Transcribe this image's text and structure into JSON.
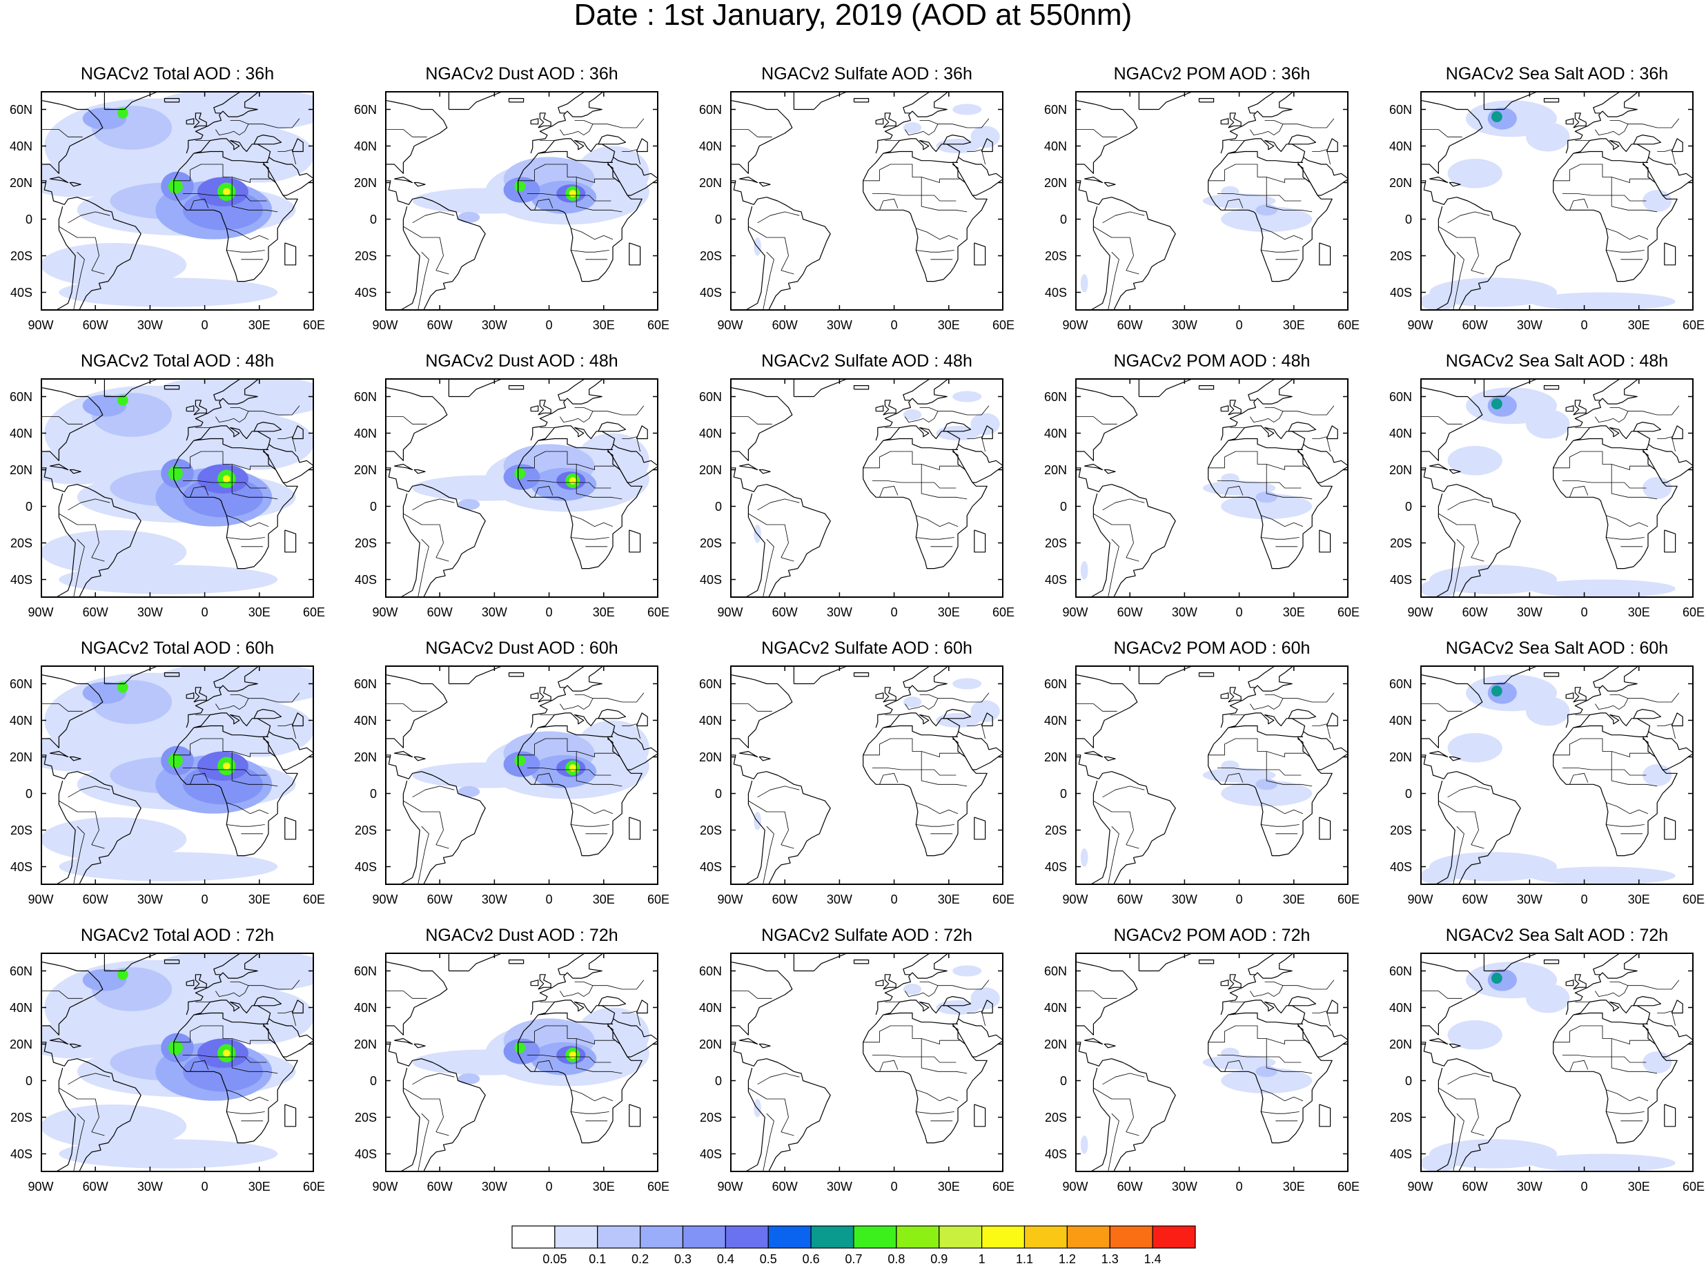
{
  "title": "Date : 1st January, 2019 (AOD at 550nm)",
  "map": {
    "lon_range": [
      -90,
      60
    ],
    "lat_range": [
      -50,
      70
    ],
    "lon_ticks": [
      "90W",
      "60W",
      "30W",
      "0",
      "30E",
      "60E"
    ],
    "lat_ticks": [
      "60N",
      "40N",
      "20N",
      "0",
      "20S",
      "40S"
    ]
  },
  "panels": [
    {
      "row": 0,
      "col": 0,
      "species": "total",
      "title": "NGACv2 Total AOD : 36h"
    },
    {
      "row": 0,
      "col": 1,
      "species": "dust",
      "title": "NGACv2 Dust AOD : 36h"
    },
    {
      "row": 0,
      "col": 2,
      "species": "sulfate",
      "title": "NGACv2 Sulfate AOD : 36h"
    },
    {
      "row": 0,
      "col": 3,
      "species": "pom",
      "title": "NGACv2 POM AOD : 36h"
    },
    {
      "row": 0,
      "col": 4,
      "species": "seasalt",
      "title": "NGACv2 Sea Salt AOD : 36h"
    },
    {
      "row": 1,
      "col": 0,
      "species": "total",
      "title": "NGACv2 Total AOD : 48h"
    },
    {
      "row": 1,
      "col": 1,
      "species": "dust",
      "title": "NGACv2 Dust AOD : 48h"
    },
    {
      "row": 1,
      "col": 2,
      "species": "sulfate",
      "title": "NGACv2 Sulfate AOD : 48h"
    },
    {
      "row": 1,
      "col": 3,
      "species": "pom",
      "title": "NGACv2 POM AOD : 48h"
    },
    {
      "row": 1,
      "col": 4,
      "species": "seasalt",
      "title": "NGACv2 Sea Salt AOD : 48h"
    },
    {
      "row": 2,
      "col": 0,
      "species": "total",
      "title": "NGACv2 Total AOD : 60h"
    },
    {
      "row": 2,
      "col": 1,
      "species": "dust",
      "title": "NGACv2 Dust AOD : 60h"
    },
    {
      "row": 2,
      "col": 2,
      "species": "sulfate",
      "title": "NGACv2 Sulfate AOD : 60h"
    },
    {
      "row": 2,
      "col": 3,
      "species": "pom",
      "title": "NGACv2 POM AOD : 60h"
    },
    {
      "row": 2,
      "col": 4,
      "species": "seasalt",
      "title": "NGACv2 Sea Salt AOD : 60h"
    },
    {
      "row": 3,
      "col": 0,
      "species": "total",
      "title": "NGACv2 Total AOD : 72h"
    },
    {
      "row": 3,
      "col": 1,
      "species": "dust",
      "title": "NGACv2 Dust AOD : 72h"
    },
    {
      "row": 3,
      "col": 2,
      "species": "sulfate",
      "title": "NGACv2 Sulfate AOD : 72h"
    },
    {
      "row": 3,
      "col": 3,
      "species": "pom",
      "title": "NGACv2 POM AOD : 72h"
    },
    {
      "row": 3,
      "col": 4,
      "species": "seasalt",
      "title": "NGACv2 Sea Salt  AOD : 72h"
    }
  ],
  "colorbar": {
    "labels": [
      "0.05",
      "0.1",
      "0.2",
      "0.3",
      "0.4",
      "0.5",
      "0.6",
      "0.7",
      "0.8",
      "0.9",
      "1",
      "1.1",
      "1.2",
      "1.3",
      "1.4"
    ],
    "colors": [
      "#ffffff",
      "#d7e0fc",
      "#b8c6fb",
      "#9aadfa",
      "#8193f6",
      "#6b72ef",
      "#0a64f0",
      "#0a9a8e",
      "#3cf01e",
      "#8cf014",
      "#c8f03c",
      "#fafa14",
      "#fac814",
      "#fa9b14",
      "#fa6e14",
      "#fa1e14"
    ]
  }
}
